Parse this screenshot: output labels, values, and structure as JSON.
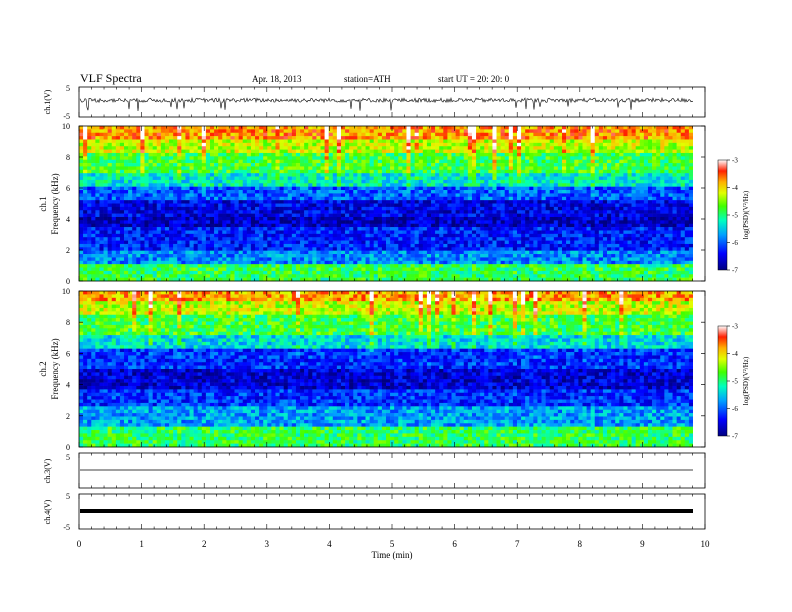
{
  "header": {
    "title": "VLF  Spectra",
    "date": "Apr. 18,  2013",
    "station": "station=ATH",
    "start": "start  UT  =   20: 20: 0"
  },
  "chart_data": [
    {
      "type": "line",
      "panel": "ch1-waveform",
      "ylabel": "ch.1(V)",
      "ylim": [
        -5,
        5
      ],
      "yticks": [
        "5",
        "-5"
      ],
      "description_series": "noisy waveform centered near 1 V with negative spikes to about -2 V"
    },
    {
      "type": "heatmap",
      "panel": "ch1-spectrogram",
      "ylabel": "Frequency  (kHz)",
      "chlabel": "ch.1",
      "ylim": [
        0,
        10
      ],
      "yticks": [
        "0",
        "2",
        "4",
        "6",
        "8",
        "10"
      ],
      "xlim": [
        0,
        9.8
      ],
      "colorbar": {
        "label": "log(PSD)(V²/Hz)",
        "ticks": [
          "-3",
          "-4",
          "-5",
          "-6",
          "-7"
        ],
        "range": [
          -7,
          -3
        ]
      },
      "bands": [
        {
          "f_lo": 0,
          "f_hi": 1.0,
          "level": -4.9
        },
        {
          "f_lo": 1.0,
          "f_hi": 2.0,
          "level": -5.8
        },
        {
          "f_lo": 2.0,
          "f_hi": 3.4,
          "level": -6.3
        },
        {
          "f_lo": 3.4,
          "f_hi": 4.2,
          "level": -6.7
        },
        {
          "f_lo": 4.2,
          "f_hi": 5.2,
          "level": -6.5
        },
        {
          "f_lo": 5.2,
          "f_hi": 6.0,
          "level": -6.0
        },
        {
          "f_lo": 6.0,
          "f_hi": 7.0,
          "level": -5.3
        },
        {
          "f_lo": 7.0,
          "f_hi": 8.2,
          "level": -4.8
        },
        {
          "f_lo": 8.2,
          "f_hi": 9.2,
          "level": -4.3
        },
        {
          "f_lo": 9.2,
          "f_hi": 10.0,
          "level": -3.7
        }
      ]
    },
    {
      "type": "heatmap",
      "panel": "ch2-spectrogram",
      "ylabel": "Frequency  (kHz)",
      "chlabel": "ch.2",
      "ylim": [
        0,
        10
      ],
      "yticks": [
        "0",
        "2",
        "4",
        "6",
        "8",
        "10"
      ],
      "xlim": [
        0,
        9.8
      ],
      "colorbar": {
        "label": "log(PSD)(V²/Hz)",
        "ticks": [
          "-3",
          "-4",
          "-5",
          "-6",
          "-7"
        ],
        "range": [
          -7,
          -3
        ]
      },
      "bands": [
        {
          "f_lo": 0,
          "f_hi": 1.2,
          "level": -4.9
        },
        {
          "f_lo": 1.2,
          "f_hi": 2.6,
          "level": -5.7
        },
        {
          "f_lo": 2.6,
          "f_hi": 3.6,
          "level": -6.2
        },
        {
          "f_lo": 3.6,
          "f_hi": 5.0,
          "level": -6.6
        },
        {
          "f_lo": 5.0,
          "f_hi": 6.2,
          "level": -6.2
        },
        {
          "f_lo": 6.2,
          "f_hi": 7.2,
          "level": -5.4
        },
        {
          "f_lo": 7.2,
          "f_hi": 8.4,
          "level": -4.8
        },
        {
          "f_lo": 8.4,
          "f_hi": 9.3,
          "level": -4.3
        },
        {
          "f_lo": 9.3,
          "f_hi": 10.0,
          "level": -3.8
        }
      ]
    },
    {
      "type": "line",
      "panel": "ch3-waveform",
      "ylabel": "ch.3(V)",
      "ylim": [
        -5,
        5
      ],
      "yticks": [
        "5"
      ],
      "level": -0.5
    },
    {
      "type": "line",
      "panel": "ch4-waveform",
      "ylabel": "ch.4(V)",
      "ylim": [
        -5,
        5
      ],
      "yticks": [
        "5",
        "-5"
      ],
      "level": 0
    }
  ],
  "xaxis": {
    "label": "Time  (min)",
    "range": [
      0,
      10
    ],
    "ticks": [
      "0",
      "1",
      "2",
      "3",
      "4",
      "5",
      "6",
      "7",
      "8",
      "9",
      "10"
    ]
  }
}
